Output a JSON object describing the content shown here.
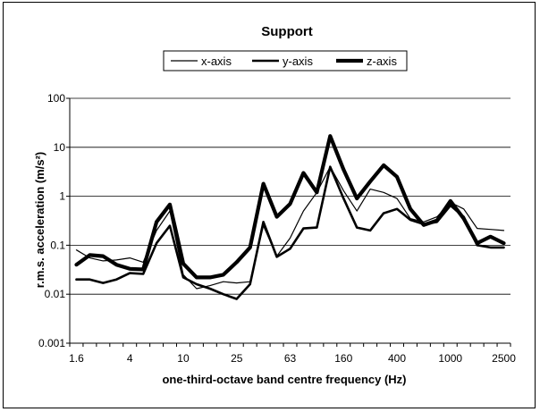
{
  "chart_data": {
    "type": "line",
    "title": "Support",
    "xlabel": "one-third-octave band centre frequency (Hz)",
    "ylabel": "r.m.s. acceleration (m/s²)",
    "yscale": "log",
    "ylim": [
      0.001,
      100
    ],
    "y_ticks": [
      "0.001",
      "0.01",
      "0.1",
      "1",
      "10",
      "100"
    ],
    "x_tick_labels": [
      "1.6",
      "4",
      "10",
      "25",
      "63",
      "160",
      "400",
      "1000",
      "2500"
    ],
    "x": [
      1.6,
      2,
      2.5,
      3.15,
      4,
      5,
      6.3,
      8,
      10,
      12.5,
      16,
      20,
      25,
      31.5,
      40,
      50,
      63,
      80,
      100,
      125,
      160,
      200,
      250,
      315,
      400,
      500,
      630,
      800,
      1000,
      1250,
      1600,
      2000,
      2500
    ],
    "grid": "horizontal",
    "legend_position": "top",
    "series": [
      {
        "name": "x-axis",
        "stroke": 1.2,
        "values": [
          0.08,
          0.055,
          0.048,
          0.05,
          0.055,
          0.045,
          0.2,
          0.5,
          0.025,
          0.013,
          0.015,
          0.018,
          0.017,
          0.018,
          0.25,
          0.06,
          0.14,
          0.5,
          1.2,
          4.0,
          1.3,
          0.5,
          1.4,
          1.2,
          0.9,
          0.35,
          0.3,
          0.38,
          0.75,
          0.55,
          0.22,
          0.21,
          0.2
        ]
      },
      {
        "name": "y-axis",
        "stroke": 2.6,
        "values": [
          0.02,
          0.02,
          0.017,
          0.02,
          0.027,
          0.026,
          0.11,
          0.25,
          0.022,
          0.016,
          0.013,
          0.01,
          0.008,
          0.016,
          0.3,
          0.058,
          0.085,
          0.22,
          0.23,
          4.0,
          0.9,
          0.23,
          0.2,
          0.45,
          0.55,
          0.33,
          0.27,
          0.3,
          0.65,
          0.38,
          0.1,
          0.09,
          0.09
        ]
      },
      {
        "name": "z-axis",
        "stroke": 4.2,
        "values": [
          0.04,
          0.063,
          0.06,
          0.04,
          0.033,
          0.032,
          0.3,
          0.68,
          0.042,
          0.022,
          0.022,
          0.025,
          0.045,
          0.09,
          1.8,
          0.38,
          0.7,
          3.0,
          1.2,
          17.0,
          3.5,
          0.9,
          2.0,
          4.3,
          2.5,
          0.55,
          0.26,
          0.32,
          0.8,
          0.35,
          0.11,
          0.15,
          0.11
        ]
      }
    ]
  }
}
